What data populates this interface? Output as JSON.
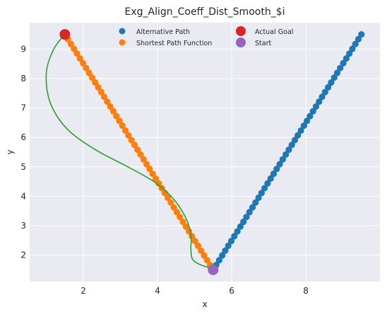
{
  "chart_data": {
    "type": "scatter",
    "title": "Exg_Align_Coeff_Dist_Smooth_$i",
    "xlabel": "x",
    "ylabel": "y",
    "xlim": [
      0.55,
      10.0
    ],
    "ylim": [
      1.1,
      9.9
    ],
    "xticks": [
      "2",
      "4",
      "6",
      "8"
    ],
    "yticks": [
      "2",
      "3",
      "4",
      "5",
      "6",
      "7",
      "8",
      "9"
    ],
    "grid": true,
    "legend_position": "top-center",
    "colors": {
      "alternative_path": "#1f77b4",
      "shortest_path": "#ff7f0e",
      "actual_goal": "#d62728",
      "start": "#9467bd",
      "smooth_line": "#2ca02c",
      "plot_background": "#eaeaf2",
      "grid": "#ffffff"
    },
    "series": [
      {
        "name": "Alternative Path",
        "kind": "points",
        "from": [
          5.5,
          1.5
        ],
        "to": [
          9.5,
          9.5
        ],
        "count": 50
      },
      {
        "name": "Shortest Path Function",
        "kind": "points",
        "from": [
          1.5,
          9.5
        ],
        "to": [
          5.5,
          1.5
        ],
        "count": 50
      },
      {
        "name": "Actual Goal",
        "kind": "marker",
        "x": 1.5,
        "y": 9.5
      },
      {
        "name": "Start",
        "kind": "marker",
        "x": 5.5,
        "y": 1.5
      },
      {
        "kind": "line",
        "x": [
          5.5,
          5.2,
          4.95,
          4.9,
          4.9,
          4.75,
          4.4,
          3.9,
          3.2,
          2.3,
          1.55,
          1.1,
          1.0,
          1.2,
          1.5
        ],
        "y": [
          1.55,
          1.65,
          1.85,
          2.2,
          2.7,
          3.3,
          3.95,
          4.5,
          5.0,
          5.6,
          6.3,
          7.2,
          8.2,
          9.0,
          9.5
        ]
      }
    ]
  }
}
